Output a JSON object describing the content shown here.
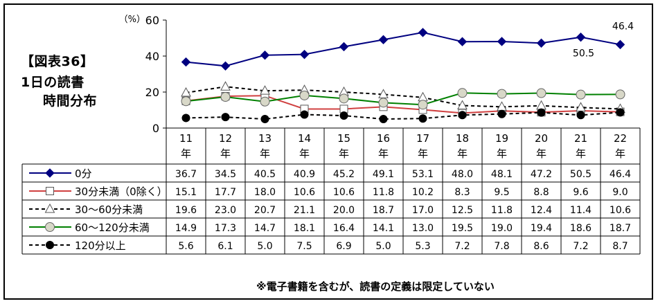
{
  "figure": {
    "label": "【図表36】",
    "title_line1": "1日の読書",
    "title_line2": "時間分布",
    "note": "※電子書籍を含むが、読書の定義は限定していない"
  },
  "chart_data": {
    "type": "line",
    "ylabel": "（%）",
    "ylim": [
      0,
      60
    ],
    "yticks": [
      0,
      20,
      40,
      60
    ],
    "categories": [
      "11年",
      "12年",
      "13年",
      "14年",
      "15年",
      "16年",
      "17年",
      "18年",
      "19年",
      "20年",
      "21年",
      "22年"
    ],
    "series": [
      {
        "name": "0分",
        "color": "#000080",
        "marker": "filled-diamond",
        "dash": "solid",
        "values": [
          36.7,
          34.5,
          40.5,
          40.9,
          45.2,
          49.1,
          53.1,
          48.0,
          48.1,
          47.2,
          50.5,
          46.4
        ]
      },
      {
        "name": "30分未満（0除く）",
        "color": "#d04040",
        "marker": "open-square",
        "dash": "solid",
        "values": [
          15.1,
          17.7,
          18.0,
          10.6,
          10.6,
          11.8,
          10.2,
          8.3,
          9.5,
          8.8,
          9.6,
          9.0
        ]
      },
      {
        "name": "30～60分未満",
        "color": "#000000",
        "marker": "open-triangle",
        "dash": "dashed",
        "values": [
          19.6,
          23.0,
          20.7,
          21.1,
          20.0,
          18.7,
          17.0,
          12.5,
          11.8,
          12.4,
          11.4,
          10.6
        ]
      },
      {
        "name": "60～120分未満",
        "color": "#008000",
        "marker": "open-circle-gray",
        "dash": "solid",
        "values": [
          14.9,
          17.3,
          14.7,
          18.1,
          16.4,
          14.1,
          13.0,
          19.5,
          19.0,
          19.4,
          18.6,
          18.7
        ]
      },
      {
        "name": "120分以上",
        "color": "#000000",
        "marker": "filled-circle",
        "dash": "dashed",
        "values": [
          5.6,
          6.1,
          5.0,
          7.5,
          6.9,
          5.0,
          5.3,
          7.2,
          7.8,
          8.6,
          7.2,
          8.7
        ]
      }
    ],
    "data_labels": [
      {
        "series": 0,
        "index": 11,
        "text": "46.4",
        "position": "above"
      },
      {
        "series": 0,
        "index": 10,
        "text": "50.5",
        "position": "below"
      }
    ],
    "grid": false,
    "legend": "data-table"
  }
}
